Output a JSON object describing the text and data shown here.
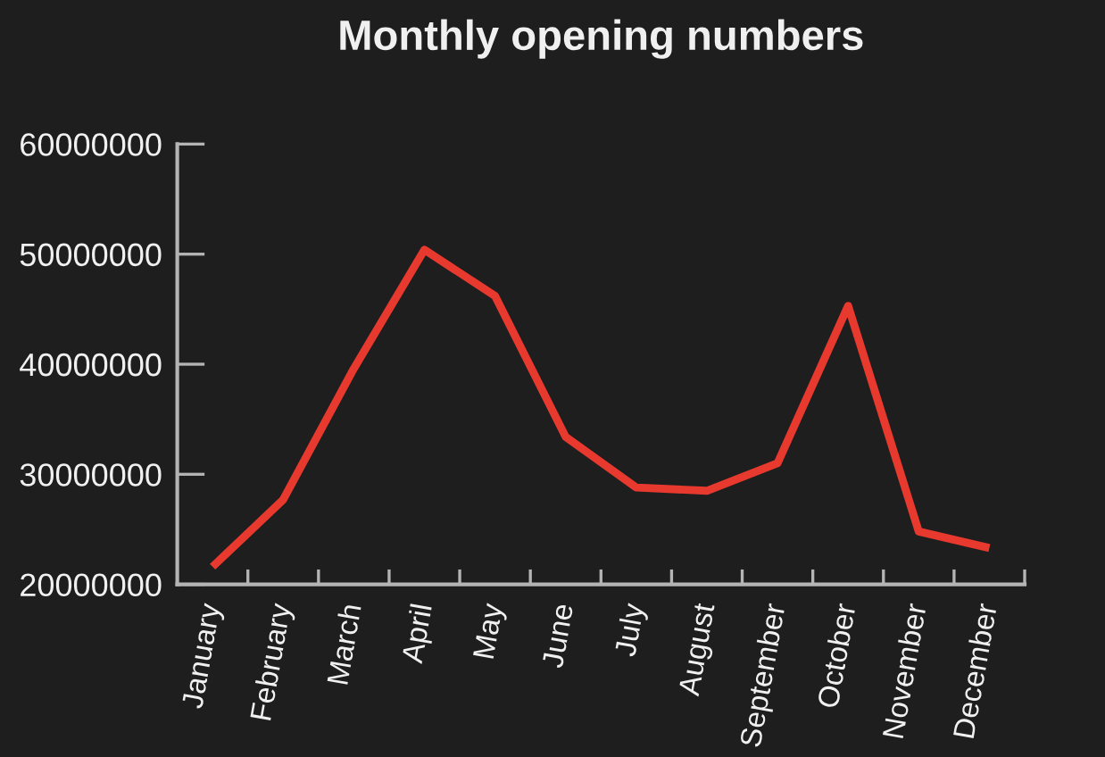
{
  "chart_data": {
    "type": "line",
    "title": "Monthly opening numbers",
    "categories": [
      "January",
      "February",
      "March",
      "April",
      "May",
      "June",
      "July",
      "August",
      "September",
      "October",
      "November",
      "December"
    ],
    "values": [
      21600000,
      27700000,
      39600000,
      50400000,
      46200000,
      33400000,
      28800000,
      28500000,
      31000000,
      45300000,
      24800000,
      23300000
    ],
    "color": "#e8392f",
    "line_style": "solid",
    "ylim": [
      20000000,
      60000000
    ],
    "yticks": [
      20000000,
      30000000,
      40000000,
      50000000,
      60000000
    ],
    "grid": false
  }
}
